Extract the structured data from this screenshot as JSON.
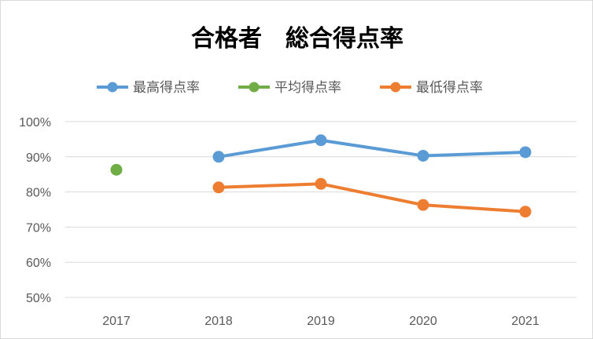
{
  "chart_data": {
    "type": "line",
    "title": "合格者　総合得点率",
    "categories": [
      "2017",
      "2018",
      "2019",
      "2020",
      "2021"
    ],
    "y_ticks": [
      "50%",
      "60%",
      "70%",
      "80%",
      "90%",
      "100%"
    ],
    "ylim": [
      50,
      100
    ],
    "grid": true,
    "legend_position": "top",
    "series": [
      {
        "name": "最高得点率",
        "color": "#5b9bd5",
        "values": [
          null,
          90.0,
          94.7,
          90.3,
          91.3
        ]
      },
      {
        "name": "平均得点率",
        "color": "#70ad47",
        "values": [
          86.3,
          null,
          null,
          null,
          null
        ]
      },
      {
        "name": "最低得点率",
        "color": "#ed7d31",
        "values": [
          null,
          81.3,
          82.3,
          76.3,
          74.4
        ]
      }
    ]
  }
}
